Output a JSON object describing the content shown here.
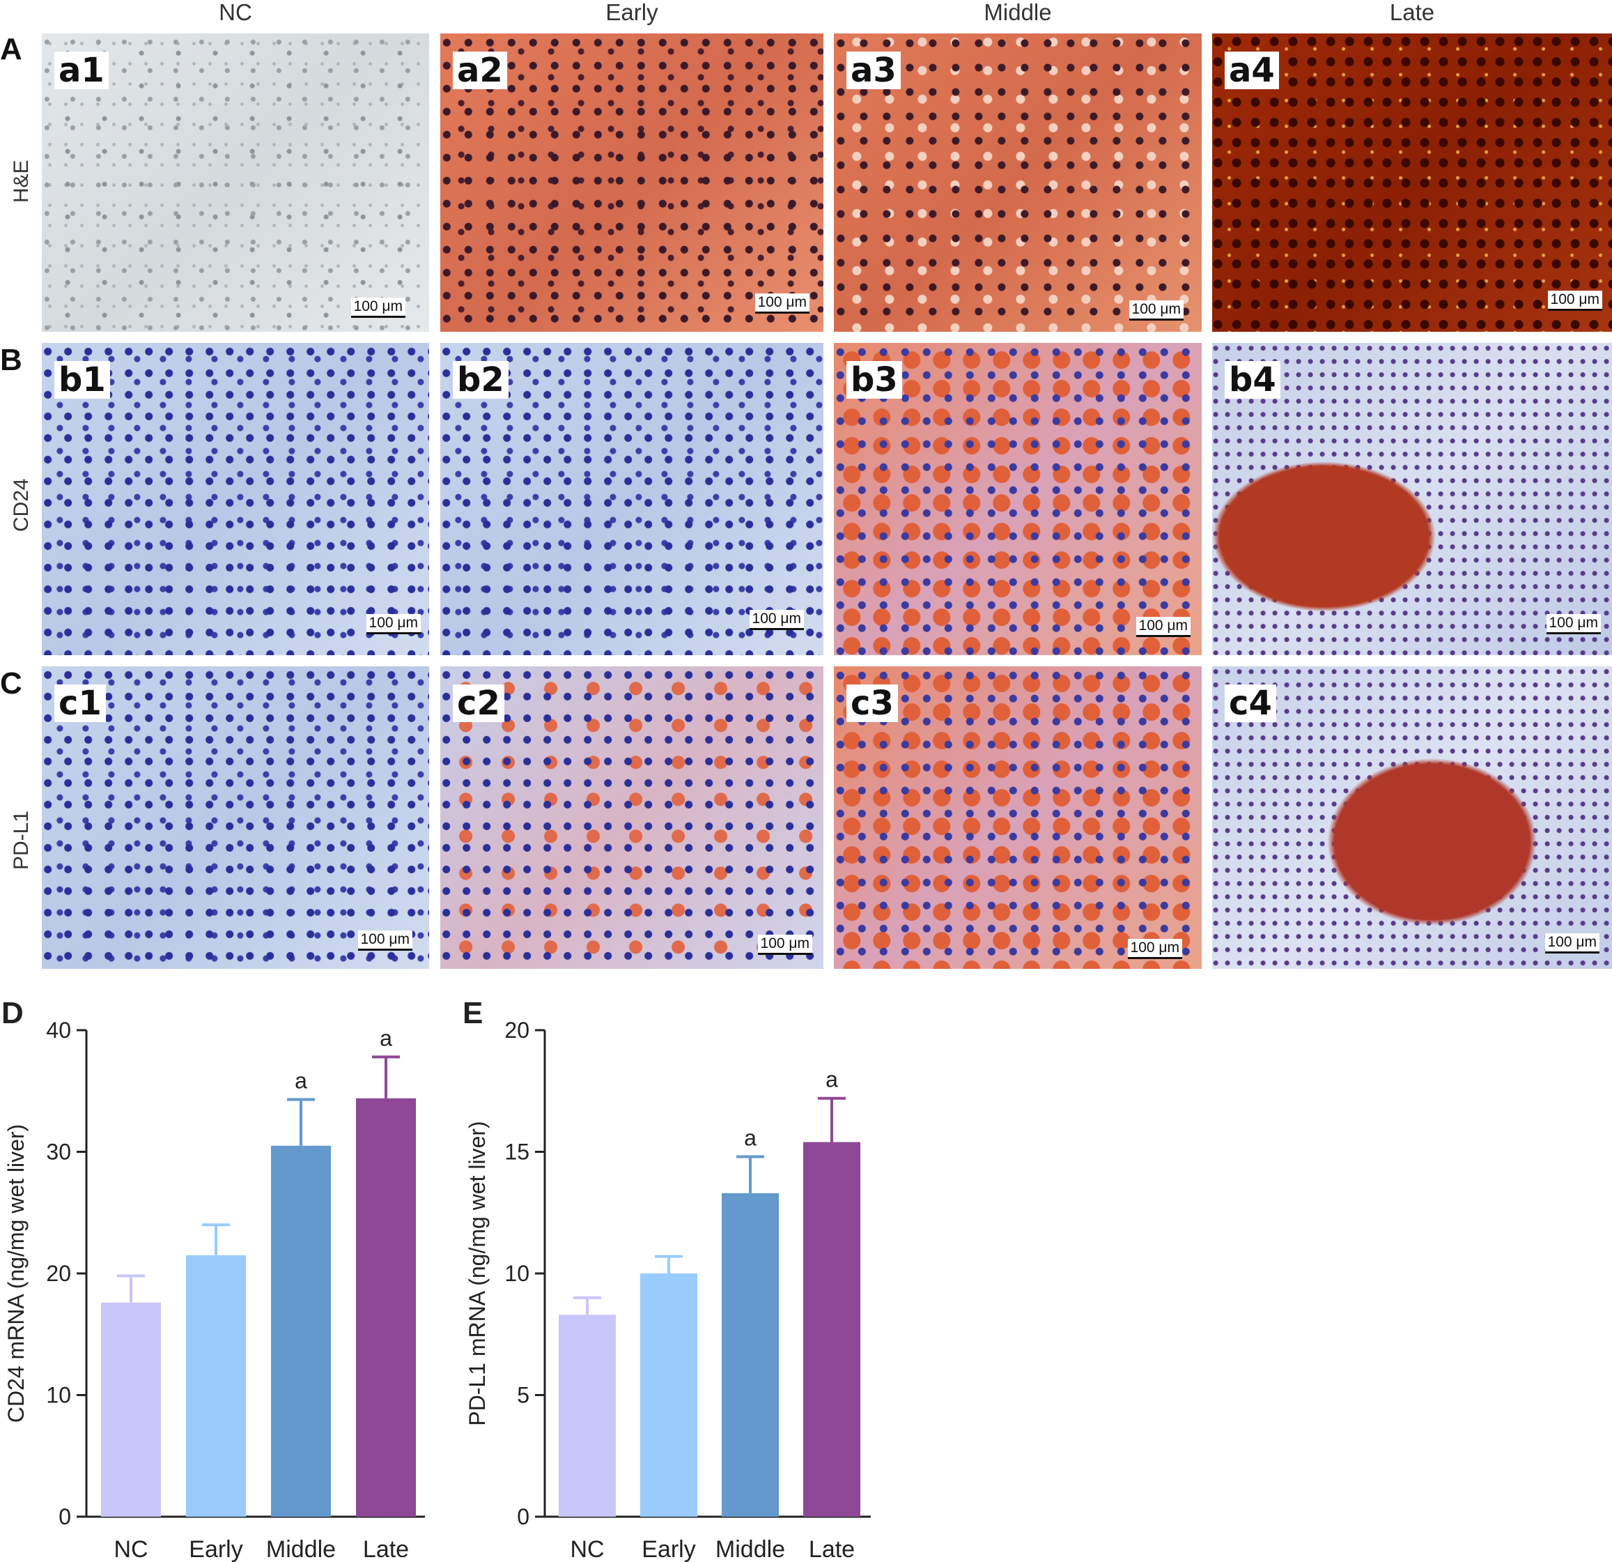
{
  "column_headers": [
    "NC",
    "Early",
    "Middle",
    "Late"
  ],
  "rows": [
    {
      "letter": "A",
      "label": "H&E",
      "panels": [
        "a1",
        "a2",
        "a3",
        "a4"
      ]
    },
    {
      "letter": "B",
      "label": "CD24",
      "panels": [
        "b1",
        "b2",
        "b3",
        "b4"
      ]
    },
    {
      "letter": "C",
      "label": "PD-L1",
      "panels": [
        "c1",
        "c2",
        "c3",
        "c4"
      ]
    }
  ],
  "scale_bar_label": "100 μm",
  "chart_data": [
    {
      "panel_letter": "D",
      "type": "bar",
      "categories": [
        "NC",
        "Early",
        "Middle",
        "Late"
      ],
      "values": [
        17.6,
        21.5,
        30.5,
        34.4
      ],
      "errors": [
        2.2,
        2.5,
        3.8,
        3.4
      ],
      "annotations": [
        "",
        "",
        "a",
        "a"
      ],
      "colors": [
        "#c9c6fa",
        "#99ccfc",
        "#6399cc",
        "#8e4896"
      ],
      "ylabel": "CD24 mRNA (ng/mg wet liver)",
      "xlabel": "",
      "ylim": [
        0,
        40
      ],
      "yticks": [
        0,
        10,
        20,
        30,
        40
      ],
      "grid": false
    },
    {
      "panel_letter": "E",
      "type": "bar",
      "categories": [
        "NC",
        "Early",
        "Middle",
        "Late"
      ],
      "values": [
        8.3,
        10.0,
        13.3,
        15.4
      ],
      "errors": [
        0.7,
        0.7,
        1.5,
        1.8
      ],
      "annotations": [
        "",
        "",
        "a",
        "a"
      ],
      "colors": [
        "#c9c6fa",
        "#99ccfc",
        "#6399cc",
        "#8e4896"
      ],
      "ylabel": "PD-L1 mRNA (ng/mg wet liver)",
      "xlabel": "",
      "ylim": [
        0,
        20
      ],
      "yticks": [
        0,
        5,
        10,
        15,
        20
      ],
      "grid": false
    }
  ]
}
